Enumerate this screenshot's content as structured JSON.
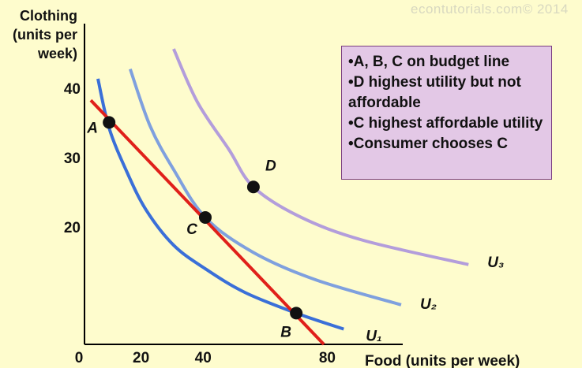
{
  "chart_data": {
    "type": "line",
    "watermark": "econtutorials.com© 2014",
    "y_label_lines": [
      "Clothing",
      "(units per",
      "week)"
    ],
    "x_label": "Food (units per week)",
    "xlim": [
      0,
      104
    ],
    "ylim": [
      3.3,
      49.5
    ],
    "xticks": [
      0,
      20,
      40,
      80
    ],
    "yticks": [
      20,
      30,
      40
    ],
    "series": [
      {
        "name": "U₁",
        "color": "#3a6fd8",
        "x": [
          5.6,
          9.2,
          14.8,
          21.1,
          30.0,
          40.2,
          52.9,
          69.5,
          84.8
        ],
        "values": [
          41.6,
          34.5,
          28.3,
          22.7,
          17.6,
          14.2,
          10.8,
          7.8,
          5.5
        ]
      },
      {
        "name": "U₂",
        "color": "#7fa0de",
        "x": [
          16.0,
          22.4,
          30.0,
          40.2,
          55.5,
          75.8,
          103.3
        ],
        "values": [
          43.0,
          34.8,
          28.5,
          21.6,
          16.6,
          12.6,
          9.0
        ]
      },
      {
        "name": "U₃",
        "color": "#b39ddb",
        "x": [
          30.0,
          37.7,
          47.8,
          55.7,
          70.7,
          91.1,
          125.0
        ],
        "values": [
          45.9,
          38.2,
          31.4,
          26.0,
          21.7,
          18.3,
          14.8
        ]
      }
    ],
    "budget_line": {
      "color": "#e0201a",
      "x": [
        3.3,
        78.4
      ],
      "values": [
        38.5,
        3.3
      ]
    },
    "points": [
      {
        "label": "A",
        "x": 9.2,
        "y": 35.3
      },
      {
        "label": "C",
        "x": 40.2,
        "y": 21.6
      },
      {
        "label": "B",
        "x": 69.5,
        "y": 7.8
      },
      {
        "label": "D",
        "x": 55.7,
        "y": 26.0
      }
    ],
    "notes": [
      "•A, B, C on budget line",
      "•D highest utility but not affordable",
      "•C highest affordable utility",
      "•Consumer chooses C"
    ]
  }
}
